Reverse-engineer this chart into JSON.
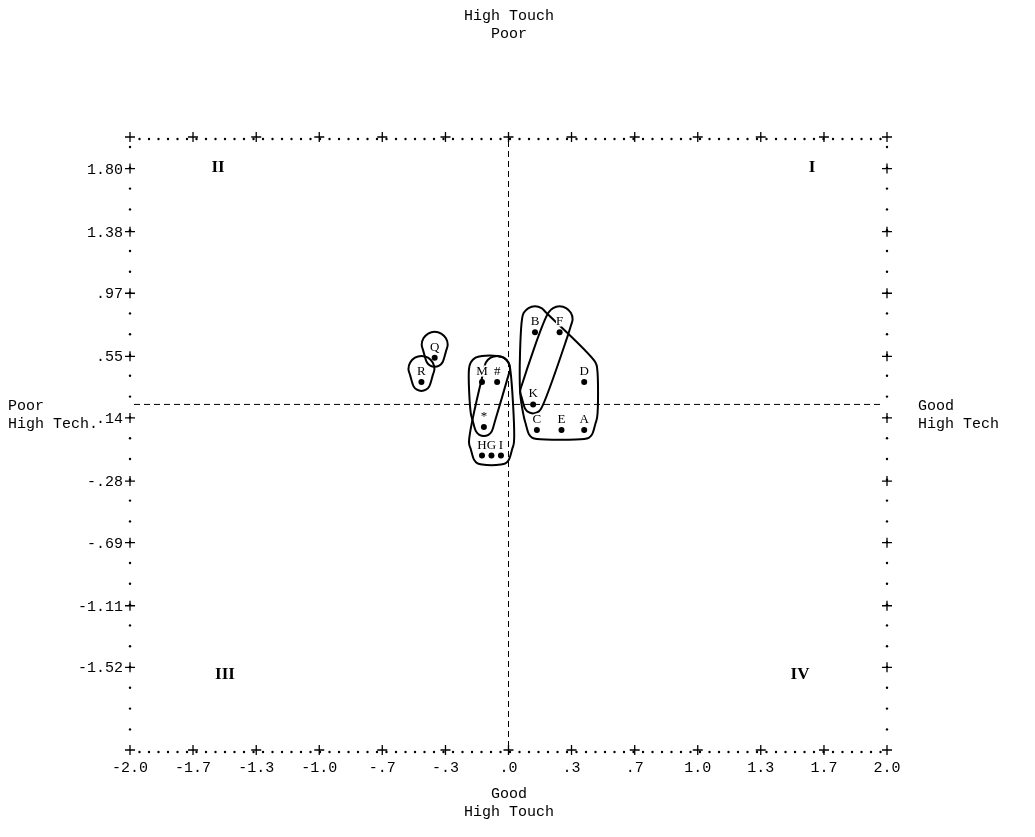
{
  "chart_data": {
    "type": "scatter",
    "xlabel": "Good\nHigh Touch",
    "annotations": [
      "High Touch\nPoor",
      "Poor\nHigh Tech.",
      "Good\nHigh Tech",
      "II",
      "I",
      "III",
      "IV"
    ],
    "xlim": [
      -2.0,
      2.0
    ],
    "xticks": [
      {
        "value": -2.0,
        "label": "-2.0"
      },
      {
        "value": -1.667,
        "label": "-1.7"
      },
      {
        "value": -1.333,
        "label": "-1.3"
      },
      {
        "value": -1.0,
        "label": "-1.0"
      },
      {
        "value": -0.667,
        "label": "-.7"
      },
      {
        "value": -0.333,
        "label": "-.3"
      },
      {
        "value": 0,
        "label": ".0"
      },
      {
        "value": 0.333,
        "label": ".3"
      },
      {
        "value": 0.667,
        "label": ".7"
      },
      {
        "value": 1.0,
        "label": "1.0"
      },
      {
        "value": 1.333,
        "label": "1.3"
      },
      {
        "value": 1.667,
        "label": "1.7"
      },
      {
        "value": 2.0,
        "label": "2.0"
      }
    ],
    "ylim": [
      -2.07,
      2.01
    ],
    "yticks": [
      {
        "value": 1.8,
        "label": "1.80"
      },
      {
        "value": 1.38,
        "label": "1.38"
      },
      {
        "value": 0.97,
        "label": ".97"
      },
      {
        "value": 0.55,
        "label": ".55"
      },
      {
        "value": 0.14,
        "label": ".14"
      },
      {
        "value": -0.28,
        "label": "-.28"
      },
      {
        "value": -0.69,
        "label": "-.69"
      },
      {
        "value": -1.11,
        "label": "-1.11"
      },
      {
        "value": -1.52,
        "label": "-1.52"
      }
    ],
    "ref_lines": [
      {
        "axis": "x",
        "value": 0,
        "line_style": "dashed"
      },
      {
        "axis": "y",
        "value": 0.23,
        "line_style": "dashed"
      }
    ],
    "marker": "circle",
    "grid": false,
    "legend": false,
    "series": [
      {
        "name": "Q",
        "color": "#000000",
        "x": [
          -0.39
        ],
        "values": [
          0.54
        ]
      },
      {
        "name": "R",
        "color": "#000000",
        "x": [
          -0.46
        ],
        "values": [
          0.38
        ]
      },
      {
        "name": "M",
        "color": "#000000",
        "x": [
          -0.14
        ],
        "values": [
          0.38
        ]
      },
      {
        "name": "#",
        "color": "#000000",
        "x": [
          -0.06
        ],
        "values": [
          0.38
        ]
      },
      {
        "name": "*",
        "color": "#000000",
        "x": [
          -0.13
        ],
        "values": [
          0.08
        ]
      },
      {
        "name": "H",
        "color": "#000000",
        "x": [
          -0.14
        ],
        "values": [
          -0.11
        ]
      },
      {
        "name": "G",
        "color": "#000000",
        "x": [
          -0.09
        ],
        "values": [
          -0.11
        ]
      },
      {
        "name": "I",
        "color": "#000000",
        "x": [
          -0.04
        ],
        "values": [
          -0.11
        ]
      },
      {
        "name": "B",
        "color": "#000000",
        "x": [
          0.14
        ],
        "values": [
          0.71
        ]
      },
      {
        "name": "F",
        "color": "#000000",
        "x": [
          0.27
        ],
        "values": [
          0.71
        ]
      },
      {
        "name": "D",
        "color": "#000000",
        "x": [
          0.4
        ],
        "values": [
          0.38
        ]
      },
      {
        "name": "K",
        "color": "#000000",
        "x": [
          0.13
        ],
        "values": [
          0.23
        ]
      },
      {
        "name": "C",
        "color": "#000000",
        "x": [
          0.15
        ],
        "values": [
          0.06
        ]
      },
      {
        "name": "E",
        "color": "#000000",
        "x": [
          0.28
        ],
        "values": [
          0.06
        ]
      },
      {
        "name": "A",
        "color": "#000000",
        "x": [
          0.4
        ],
        "values": [
          0.06
        ]
      }
    ]
  }
}
